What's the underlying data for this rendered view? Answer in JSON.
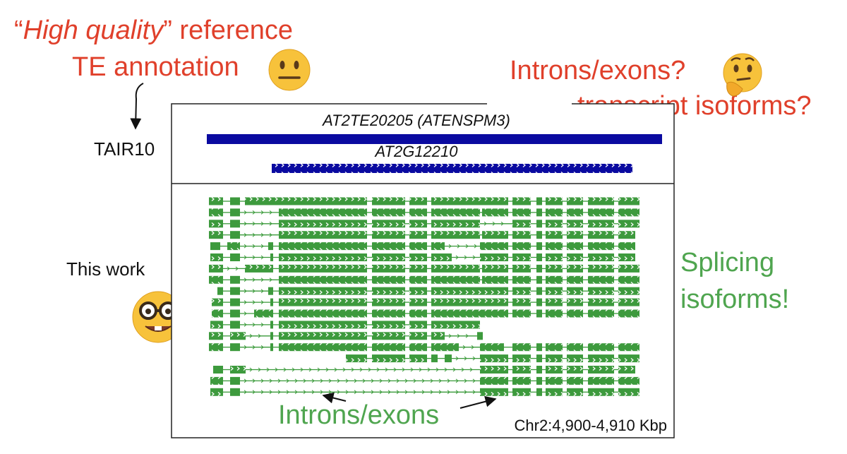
{
  "header": {
    "open_quote": "“",
    "emphasis": "High quality",
    "rest": "” reference",
    "line2": "TE annotation"
  },
  "question": {
    "line1": "Introns/exons?",
    "line2": "transcript isoforms?"
  },
  "tracks": {
    "reference_label": "TAIR10",
    "te_name": "AT2TE20205 (ATENSPM3)",
    "gene_name": "AT2G12210",
    "this_work_label": "This work",
    "coordinates": "Chr2:4,900-4,910 Kbp"
  },
  "callouts": {
    "splicing_line1": "Splicing",
    "splicing_line2": "isoforms!",
    "introns_exons": "Introns/exons"
  }
}
